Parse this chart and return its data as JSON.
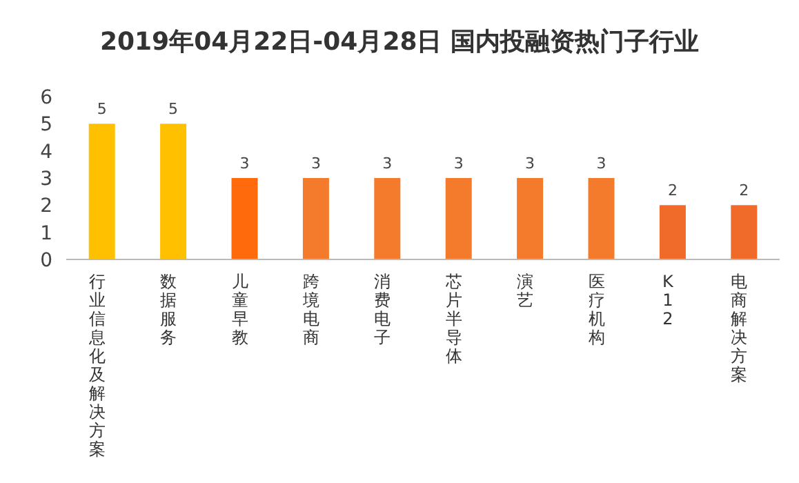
{
  "chart_data": {
    "type": "bar",
    "title": "2019年04月22日-04月28日 国内投融资热门子行业",
    "categories": [
      "行业信息化及解决方案",
      "数据服务",
      "儿童早教",
      "跨境电商",
      "消费电子",
      "芯片半导体",
      "演艺",
      "医疗机构",
      "K12",
      "电商解决方案"
    ],
    "values": [
      5,
      5,
      3,
      3,
      3,
      3,
      3,
      3,
      2,
      2
    ],
    "colors": [
      "#ffc000",
      "#ffc000",
      "#ff6a0d",
      "#f47b2b",
      "#f47b2b",
      "#f47b2b",
      "#f47b2b",
      "#f47b2b",
      "#f06a2a",
      "#f06a2a"
    ],
    "ylim": [
      0,
      6
    ],
    "yticks": [
      0,
      1,
      2,
      3,
      4,
      5,
      6
    ],
    "data_labels": true
  }
}
